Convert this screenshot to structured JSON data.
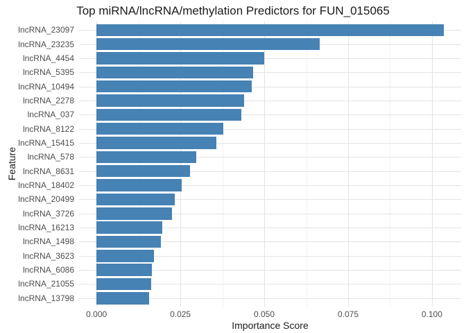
{
  "chart_data": {
    "type": "bar",
    "orientation": "horizontal",
    "title": "Top miRNA/lncRNA/methylation Predictors for FUN_015065",
    "xlabel": "Importance Score",
    "ylabel": "Feature",
    "categories": [
      "lncRNA_23097",
      "lncRNA_23235",
      "lncRNA_4454",
      "lncRNA_5395",
      "lncRNA_10494",
      "lncRNA_2278",
      "lncRNA_037",
      "lncRNA_8122",
      "lncRNA_15415",
      "lncRNA_578",
      "lncRNA_8631",
      "lncRNA_18402",
      "lncRNA_20499",
      "lncRNA_3726",
      "lncRNA_16213",
      "lncRNA_1498",
      "lncRNA_3623",
      "lncRNA_6086",
      "lncRNA_21055",
      "lncRNA_13798"
    ],
    "values": [
      0.1035,
      0.0665,
      0.05,
      0.0467,
      0.0463,
      0.044,
      0.0432,
      0.0378,
      0.0358,
      0.0298,
      0.0279,
      0.0254,
      0.0233,
      0.0224,
      0.0196,
      0.0192,
      0.0172,
      0.0165,
      0.0164,
      0.0157
    ],
    "x_major_ticks": [
      0.0,
      0.025,
      0.05,
      0.075,
      0.1
    ],
    "x_tick_labels": [
      "0.000",
      "0.025",
      "0.050",
      "0.075",
      "0.100"
    ],
    "x_minor_ticks": [
      0.0125,
      0.0375,
      0.0625,
      0.0875
    ],
    "xlim": [
      -0.0052,
      0.1087
    ],
    "grid": true,
    "legend": false,
    "colors": {
      "bar": "#4682b4",
      "grid_major": "#e3e3e3",
      "grid_minor": "#f0f0f0",
      "axis_text": "#4d4d4d",
      "title_text": "#1a1a1a",
      "background": "#ffffff"
    }
  }
}
